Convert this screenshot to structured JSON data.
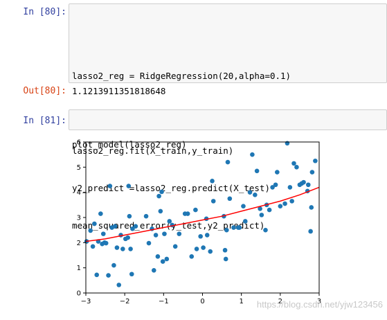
{
  "cells": {
    "in80": {
      "prompt": "In  [80]:",
      "lines": [
        "",
        "lasso2_reg = RidgeRegression(20,alpha=0.1)",
        "",
        "lasso2_reg.fit(X_train,y_train)",
        "y2_predict =lasso2_reg.predict(X_test)",
        "mean_squared_error(y_test,y2_predict)"
      ]
    },
    "out80": {
      "prompt": "Out[80]:",
      "value": "1.1213911351818648"
    },
    "in81": {
      "prompt": "In  [81]:",
      "lines": [
        "plot_model(lasso2_reg)"
      ]
    }
  },
  "watermark": "https://blog.csdn.net/yjw123456",
  "colors": {
    "points": "#1f77b4",
    "fit_line": "#ff0000",
    "in_prompt": "#303f9f",
    "out_prompt": "#d84315"
  },
  "chart_data": {
    "type": "scatter",
    "xlim": [
      -3,
      3
    ],
    "ylim": [
      0,
      6
    ],
    "xticks": [
      -3,
      -2,
      -1,
      0,
      1,
      2,
      3
    ],
    "yticks": [
      0,
      1,
      2,
      3,
      4,
      5,
      6
    ],
    "grid": false,
    "points": [
      [
        -2.98,
        2.05
      ],
      [
        -2.88,
        2.48
      ],
      [
        -2.82,
        1.85
      ],
      [
        -2.78,
        2.75
      ],
      [
        -2.72,
        0.72
      ],
      [
        -2.68,
        2.05
      ],
      [
        -2.62,
        3.15
      ],
      [
        -2.58,
        1.95
      ],
      [
        -2.55,
        2.35
      ],
      [
        -2.52,
        2.0
      ],
      [
        -2.48,
        1.98
      ],
      [
        -2.42,
        0.7
      ],
      [
        -2.38,
        4.25
      ],
      [
        -2.33,
        2.6
      ],
      [
        -2.28,
        1.1
      ],
      [
        -2.25,
        2.65
      ],
      [
        -2.2,
        1.8
      ],
      [
        -2.15,
        0.32
      ],
      [
        -2.1,
        2.3
      ],
      [
        -2.05,
        1.75
      ],
      [
        -1.98,
        2.15
      ],
      [
        -1.92,
        2.2
      ],
      [
        -1.9,
        4.25
      ],
      [
        -1.88,
        3.05
      ],
      [
        -1.85,
        1.75
      ],
      [
        -1.82,
        0.75
      ],
      [
        -1.8,
        2.55
      ],
      [
        -1.72,
        2.65
      ],
      [
        -1.45,
        3.05
      ],
      [
        -1.38,
        1.98
      ],
      [
        -1.3,
        2.55
      ],
      [
        -1.25,
        0.9
      ],
      [
        -1.2,
        2.3
      ],
      [
        -1.15,
        1.45
      ],
      [
        -1.12,
        3.85
      ],
      [
        -1.08,
        3.25
      ],
      [
        -1.05,
        4.02
      ],
      [
        -1.02,
        1.25
      ],
      [
        -0.98,
        2.35
      ],
      [
        -0.92,
        1.35
      ],
      [
        -0.85,
        2.85
      ],
      [
        -0.78,
        2.7
      ],
      [
        -0.7,
        1.85
      ],
      [
        -0.6,
        2.35
      ],
      [
        -0.45,
        3.15
      ],
      [
        -0.38,
        3.15
      ],
      [
        -0.28,
        1.45
      ],
      [
        -0.18,
        3.3
      ],
      [
        -0.05,
        2.25
      ],
      [
        0.02,
        1.8
      ],
      [
        0.1,
        2.95
      ],
      [
        0.12,
        2.3
      ],
      [
        0.2,
        1.65
      ],
      [
        0.25,
        4.45
      ],
      [
        0.28,
        3.65
      ],
      [
        0.55,
        3.05
      ],
      [
        0.58,
        1.7
      ],
      [
        0.6,
        1.35
      ],
      [
        0.62,
        2.5
      ],
      [
        0.65,
        5.2
      ],
      [
        0.7,
        3.75
      ],
      [
        0.8,
        2.6
      ],
      [
        0.92,
        2.6
      ],
      [
        1.05,
        3.45
      ],
      [
        1.1,
        2.85
      ],
      [
        1.22,
        4.0
      ],
      [
        1.28,
        5.5
      ],
      [
        1.35,
        3.9
      ],
      [
        1.4,
        4.85
      ],
      [
        1.48,
        3.35
      ],
      [
        1.52,
        3.1
      ],
      [
        1.62,
        2.5
      ],
      [
        1.65,
        3.5
      ],
      [
        1.72,
        3.3
      ],
      [
        1.8,
        4.2
      ],
      [
        1.88,
        4.3
      ],
      [
        1.92,
        4.8
      ],
      [
        2.0,
        3.45
      ],
      [
        2.12,
        3.55
      ],
      [
        2.18,
        5.95
      ],
      [
        2.25,
        4.2
      ],
      [
        2.35,
        5.15
      ],
      [
        2.42,
        5.0
      ],
      [
        2.5,
        4.3
      ],
      [
        2.55,
        4.35
      ],
      [
        2.6,
        4.4
      ],
      [
        2.72,
        4.3
      ],
      [
        2.78,
        2.45
      ],
      [
        2.8,
        3.4
      ],
      [
        2.82,
        4.8
      ],
      [
        2.9,
        5.25
      ],
      [
        2.7,
        4.05
      ],
      [
        2.3,
        3.65
      ],
      [
        0.95,
        2.6
      ],
      [
        -0.15,
        1.75
      ]
    ],
    "curve": [
      [
        -3,
        2.05
      ],
      [
        -2.5,
        2.15
      ],
      [
        -2.0,
        2.3
      ],
      [
        -1.5,
        2.45
      ],
      [
        -1.0,
        2.6
      ],
      [
        -0.5,
        2.75
      ],
      [
        0.0,
        2.9
      ],
      [
        0.5,
        3.05
      ],
      [
        1.0,
        3.25
      ],
      [
        1.5,
        3.45
      ],
      [
        2.0,
        3.65
      ],
      [
        2.5,
        3.9
      ],
      [
        3.0,
        4.2
      ]
    ]
  }
}
